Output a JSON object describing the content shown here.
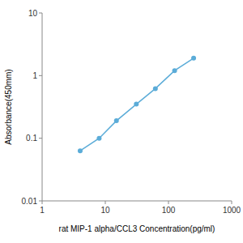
{
  "chart_data": {
    "type": "line",
    "x": [
      4,
      8,
      15,
      31,
      62,
      125,
      250
    ],
    "values": [
      0.063,
      0.1,
      0.19,
      0.35,
      0.62,
      1.2,
      1.9
    ],
    "color": "#5bacd8",
    "marker": "circle",
    "xlabel": "rat MIP-1 alpha/CCL3 Concentration(pg/ml)",
    "ylabel": "Absorbance(450mm)",
    "xlim": [
      1,
      1000
    ],
    "ylim": [
      0.01,
      10
    ],
    "xticks": [
      1,
      10,
      100,
      1000
    ],
    "yticks": [
      0.01,
      0.1,
      1,
      10
    ],
    "log": true,
    "grid": false
  }
}
